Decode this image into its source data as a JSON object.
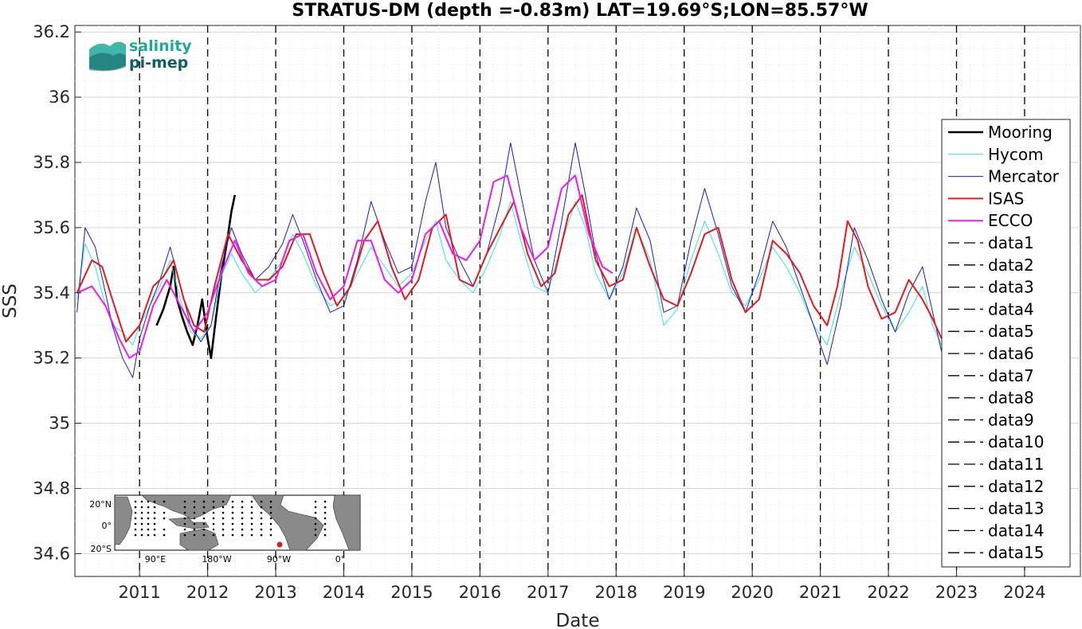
{
  "chart_data": {
    "type": "line",
    "title": "STRATUS-DM (depth =-0.83m) LAT=19.69°S;LON=85.57°W",
    "xlabel": "Date",
    "ylabel": "SSS",
    "xlim": [
      2010.05,
      2024.82
    ],
    "ylim": [
      34.53,
      36.22
    ],
    "x_ticks": [
      2011,
      2012,
      2013,
      2014,
      2015,
      2016,
      2017,
      2018,
      2019,
      2020,
      2021,
      2022,
      2023,
      2024
    ],
    "y_ticks": [
      34.6,
      34.8,
      35,
      35.2,
      35.4,
      35.6,
      35.8,
      36,
      36.2
    ],
    "y_tick_labels": [
      "34.6",
      "34.8",
      "35",
      "35.2",
      "35.4",
      "35.6",
      "35.8",
      "36",
      "36.2"
    ],
    "vlines": [
      2011,
      2012,
      2013,
      2014,
      2015,
      2016,
      2017,
      2018,
      2019,
      2020,
      2021,
      2022,
      2023,
      2024
    ],
    "grid": true,
    "legend_position": "right",
    "legend": [
      "Mooring",
      "Hycom",
      "Mercator",
      "ISAS",
      "ECCO",
      "data1",
      "data2",
      "data3",
      "data4",
      "data5",
      "data6",
      "data7",
      "data8",
      "data9",
      "data10",
      "data11",
      "data12",
      "data13",
      "data14",
      "data15"
    ],
    "series": [
      {
        "name": "Mooring",
        "color": "#000000",
        "x": [
          2011.25,
          2011.35,
          2011.45,
          2011.5,
          2011.55,
          2011.62,
          2011.7,
          2011.78,
          2011.85,
          2011.92,
          2012.0,
          2012.05,
          2012.12,
          2012.2,
          2012.28,
          2012.35,
          2012.4
        ],
        "y": [
          35.3,
          35.35,
          35.42,
          35.48,
          35.38,
          35.33,
          35.28,
          35.24,
          35.3,
          35.38,
          35.26,
          35.2,
          35.32,
          35.45,
          35.55,
          35.65,
          35.7
        ]
      },
      {
        "name": "Hycom",
        "color": "#2ee8e4",
        "x": [
          2010.08,
          2010.2,
          2010.35,
          2010.5,
          2010.6,
          2010.75,
          2010.9,
          2011.0,
          2011.15,
          2011.3,
          2011.45,
          2011.6,
          2011.75,
          2011.9,
          2012.05,
          2012.2,
          2012.35,
          2012.5,
          2012.7,
          2012.9,
          2013.1,
          2013.25,
          2013.4,
          2013.6,
          2013.8,
          2014.0,
          2014.2,
          2014.4,
          2014.6,
          2014.8,
          2015.0,
          2015.2,
          2015.35,
          2015.5,
          2015.7,
          2015.9,
          2016.1,
          2016.3,
          2016.45,
          2016.6,
          2016.8,
          2017.0,
          2017.2,
          2017.4,
          2017.55,
          2017.7,
          2017.9,
          2018.1,
          2018.3,
          2018.5,
          2018.7,
          2018.9,
          2019.1,
          2019.3,
          2019.5,
          2019.7,
          2019.9,
          2020.1,
          2020.3,
          2020.5,
          2020.7,
          2020.9,
          2021.1,
          2021.3,
          2021.5,
          2021.7,
          2021.9,
          2022.1,
          2022.3,
          2022.5,
          2022.65,
          2022.78
        ],
        "y": [
          35.38,
          35.55,
          35.48,
          35.36,
          35.3,
          35.28,
          35.24,
          35.3,
          35.36,
          35.42,
          35.5,
          35.38,
          35.28,
          35.26,
          35.3,
          35.45,
          35.52,
          35.46,
          35.4,
          35.44,
          35.5,
          35.58,
          35.52,
          35.42,
          35.36,
          35.38,
          35.46,
          35.54,
          35.48,
          35.42,
          35.46,
          35.56,
          35.62,
          35.5,
          35.44,
          35.4,
          35.48,
          35.58,
          35.68,
          35.56,
          35.42,
          35.4,
          35.55,
          35.68,
          35.6,
          35.46,
          35.38,
          35.46,
          35.6,
          35.5,
          35.3,
          35.35,
          35.5,
          35.62,
          35.52,
          35.4,
          35.36,
          35.44,
          35.54,
          35.48,
          35.4,
          35.3,
          35.24,
          35.4,
          35.54,
          35.46,
          35.36,
          35.28,
          35.34,
          35.42,
          35.3,
          35.24
        ]
      },
      {
        "name": "Mercator",
        "color": "#1d1ac6",
        "x": [
          2010.08,
          2010.2,
          2010.35,
          2010.5,
          2010.6,
          2010.75,
          2010.9,
          2011.0,
          2011.15,
          2011.3,
          2011.45,
          2011.6,
          2011.75,
          2011.9,
          2012.05,
          2012.2,
          2012.35,
          2012.5,
          2012.7,
          2012.9,
          2013.1,
          2013.25,
          2013.4,
          2013.6,
          2013.8,
          2014.0,
          2014.2,
          2014.4,
          2014.6,
          2014.8,
          2015.0,
          2015.2,
          2015.35,
          2015.5,
          2015.7,
          2015.9,
          2016.1,
          2016.3,
          2016.45,
          2016.6,
          2016.8,
          2017.0,
          2017.2,
          2017.4,
          2017.55,
          2017.7,
          2017.9,
          2018.1,
          2018.3,
          2018.5,
          2018.7,
          2018.9,
          2019.1,
          2019.3,
          2019.5,
          2019.7,
          2019.9,
          2020.1,
          2020.3,
          2020.5,
          2020.7,
          2020.9,
          2021.1,
          2021.3,
          2021.5,
          2021.7,
          2021.9,
          2022.1,
          2022.3,
          2022.5,
          2022.65,
          2022.78
        ],
        "y": [
          35.34,
          35.6,
          35.54,
          35.4,
          35.3,
          35.2,
          35.14,
          35.26,
          35.36,
          35.44,
          35.54,
          35.42,
          35.3,
          35.25,
          35.3,
          35.48,
          35.6,
          35.52,
          35.44,
          35.48,
          35.55,
          35.64,
          35.56,
          35.44,
          35.34,
          35.36,
          35.5,
          35.68,
          35.56,
          35.46,
          35.48,
          35.68,
          35.8,
          35.6,
          35.5,
          35.42,
          35.52,
          35.68,
          35.86,
          35.7,
          35.5,
          35.4,
          35.62,
          35.86,
          35.7,
          35.52,
          35.38,
          35.48,
          35.66,
          35.56,
          35.34,
          35.36,
          35.56,
          35.72,
          35.58,
          35.42,
          35.34,
          35.46,
          35.62,
          35.54,
          35.42,
          35.3,
          35.18,
          35.36,
          35.6,
          35.5,
          35.38,
          35.28,
          35.4,
          35.48,
          35.34,
          35.22
        ]
      },
      {
        "name": "ISAS",
        "color": "#e41a1c",
        "x": [
          2010.08,
          2010.3,
          2010.45,
          2010.6,
          2010.8,
          2011.0,
          2011.2,
          2011.35,
          2011.5,
          2011.65,
          2011.8,
          2011.95,
          2012.1,
          2012.3,
          2012.5,
          2012.7,
          2012.9,
          2013.1,
          2013.3,
          2013.5,
          2013.7,
          2013.9,
          2014.1,
          2014.3,
          2014.5,
          2014.7,
          2014.9,
          2015.1,
          2015.3,
          2015.5,
          2015.7,
          2015.9,
          2016.1,
          2016.3,
          2016.5,
          2016.7,
          2016.9,
          2017.1,
          2017.3,
          2017.5,
          2017.7,
          2017.9,
          2018.1,
          2018.3,
          2018.5,
          2018.7,
          2018.9,
          2019.1,
          2019.3,
          2019.5,
          2019.7,
          2019.9,
          2020.1,
          2020.3,
          2020.5,
          2020.7,
          2020.9,
          2021.1,
          2021.25,
          2021.4,
          2021.55,
          2021.7,
          2021.9,
          2022.1,
          2022.3,
          2022.5,
          2022.65,
          2022.78
        ],
        "y": [
          35.4,
          35.5,
          35.48,
          35.38,
          35.25,
          35.3,
          35.42,
          35.45,
          35.5,
          35.38,
          35.3,
          35.28,
          35.42,
          35.58,
          35.5,
          35.44,
          35.44,
          35.48,
          35.58,
          35.58,
          35.46,
          35.36,
          35.42,
          35.56,
          35.62,
          35.48,
          35.38,
          35.44,
          35.6,
          35.64,
          35.44,
          35.42,
          35.52,
          35.6,
          35.68,
          35.52,
          35.42,
          35.46,
          35.64,
          35.7,
          35.5,
          35.42,
          35.44,
          35.6,
          35.48,
          35.38,
          35.36,
          35.46,
          35.58,
          35.6,
          35.44,
          35.34,
          35.38,
          35.56,
          35.52,
          35.46,
          35.36,
          35.3,
          35.42,
          35.62,
          35.56,
          35.42,
          35.32,
          35.34,
          35.44,
          35.38,
          35.32,
          35.26
        ]
      },
      {
        "name": "ECCO",
        "color": "#ee1aee",
        "x": [
          2010.08,
          2010.3,
          2010.5,
          2010.7,
          2010.85,
          2011.0,
          2011.2,
          2011.4,
          2011.6,
          2011.8,
          2012.0,
          2012.2,
          2012.4,
          2012.6,
          2012.8,
          2013.0,
          2013.2,
          2013.4,
          2013.6,
          2013.8,
          2014.0,
          2014.2,
          2014.4,
          2014.6,
          2014.8,
          2015.0,
          2015.2,
          2015.4,
          2015.6,
          2015.8,
          2016.0,
          2016.2,
          2016.4,
          2016.6,
          2016.8,
          2017.0,
          2017.2,
          2017.4,
          2017.6,
          2017.8,
          2017.95
        ],
        "y": [
          35.4,
          35.42,
          35.36,
          35.26,
          35.2,
          35.22,
          35.36,
          35.44,
          35.36,
          35.28,
          35.34,
          35.46,
          35.56,
          35.46,
          35.42,
          35.44,
          35.56,
          35.58,
          35.46,
          35.38,
          35.42,
          35.56,
          35.56,
          35.44,
          35.4,
          35.44,
          35.58,
          35.62,
          35.52,
          35.5,
          35.56,
          35.74,
          35.76,
          35.6,
          35.5,
          35.54,
          35.72,
          35.76,
          35.58,
          35.48,
          35.46
        ]
      }
    ]
  },
  "logo": {
    "line1": "salinity",
    "line2": "pi-mep"
  },
  "inset_map": {
    "lat_labels": [
      "20",
      "0",
      "20"
    ],
    "lat_suffixes": [
      "N",
      "",
      "S"
    ],
    "lon_labels": [
      "90",
      "180",
      "90",
      "0"
    ],
    "lon_suffixes": [
      "E",
      "W",
      "W",
      ""
    ],
    "land_color": "#8a8a8a",
    "marker_color": "#e41a1c"
  }
}
